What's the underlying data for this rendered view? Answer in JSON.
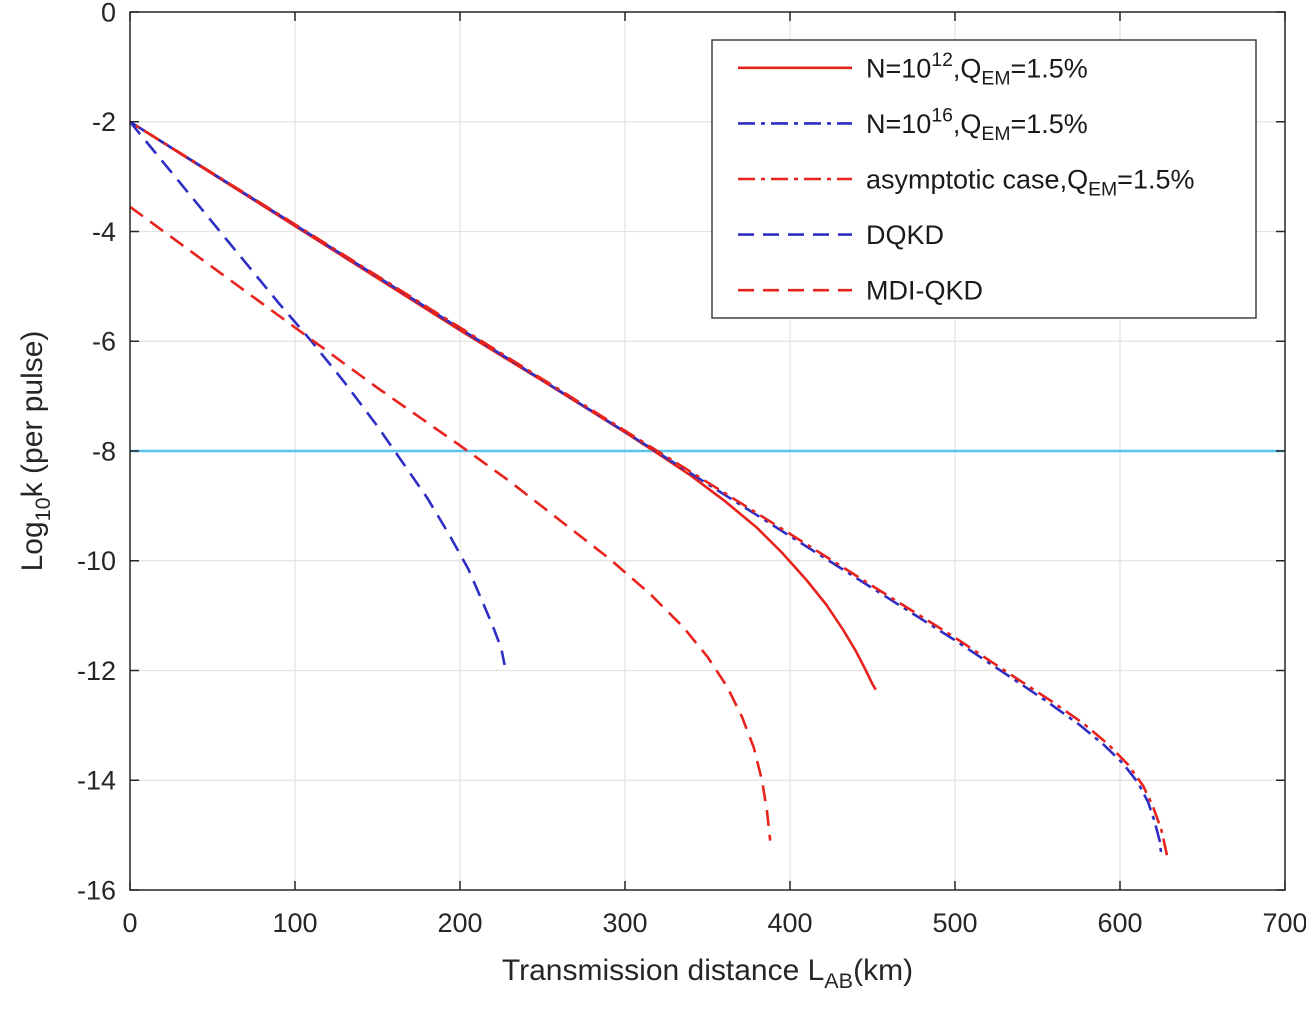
{
  "figure": {
    "background": "#ffffff"
  },
  "chart_data": {
    "type": "line",
    "title": "",
    "xlabel_segments": [
      {
        "t": "Transmission distance L"
      },
      {
        "t": "AB",
        "sub": true
      },
      {
        "t": "(km)"
      }
    ],
    "ylabel_segments": [
      {
        "t": "Log"
      },
      {
        "t": "10",
        "sub": true
      },
      {
        "t": "k (per pulse)"
      }
    ],
    "xlim": [
      0,
      700
    ],
    "ylim": [
      -16,
      0
    ],
    "xticks": [
      0,
      100,
      200,
      300,
      400,
      500,
      600,
      700
    ],
    "yticks": [
      0,
      -2,
      -4,
      -6,
      -8,
      -10,
      -12,
      -14,
      -16
    ],
    "grid": true,
    "grid_color": "#e3e3e3",
    "axis_color": "#262626",
    "tick_label_color": "#262626",
    "legend": {
      "position": "top-right",
      "border_color": "#333333",
      "background": "#ffffff"
    },
    "reference_line": {
      "key": "threshold",
      "y": -8,
      "color": "#58c4ee",
      "width": 2.6
    },
    "series": [
      {
        "key": "n1e12",
        "label_segments": [
          {
            "t": "N=10"
          },
          {
            "t": "12",
            "sup": true
          },
          {
            "t": ",Q"
          },
          {
            "t": "EM",
            "sub": true
          },
          {
            "t": "=1.5%"
          }
        ],
        "color": "#e8221c",
        "style": "solid",
        "width": 2.6,
        "points": [
          [
            0,
            -2.0
          ],
          [
            50,
            -2.95
          ],
          [
            100,
            -3.9
          ],
          [
            150,
            -4.85
          ],
          [
            200,
            -5.8
          ],
          [
            250,
            -6.72
          ],
          [
            300,
            -7.66
          ],
          [
            320,
            -8.05
          ],
          [
            340,
            -8.45
          ],
          [
            360,
            -8.9
          ],
          [
            380,
            -9.4
          ],
          [
            395,
            -9.85
          ],
          [
            410,
            -10.35
          ],
          [
            422,
            -10.8
          ],
          [
            432,
            -11.25
          ],
          [
            440,
            -11.65
          ],
          [
            446,
            -12.0
          ],
          [
            450,
            -12.25
          ],
          [
            452,
            -12.35
          ]
        ]
      },
      {
        "key": "n1e16",
        "label_segments": [
          {
            "t": "N=10"
          },
          {
            "t": "16",
            "sup": true
          },
          {
            "t": ",Q"
          },
          {
            "t": "EM",
            "sub": true
          },
          {
            "t": "=1.5%"
          }
        ],
        "color": "#2e2ec4",
        "style": "dashdot",
        "width": 2.6,
        "dash_offset": 0,
        "points": [
          [
            0,
            -2.0
          ],
          [
            100,
            -3.88
          ],
          [
            200,
            -5.77
          ],
          [
            300,
            -7.65
          ],
          [
            350,
            -8.6
          ],
          [
            400,
            -9.55
          ],
          [
            450,
            -10.5
          ],
          [
            500,
            -11.45
          ],
          [
            530,
            -12.05
          ],
          [
            555,
            -12.55
          ],
          [
            575,
            -12.98
          ],
          [
            590,
            -13.35
          ],
          [
            602,
            -13.7
          ],
          [
            611,
            -14.05
          ],
          [
            617,
            -14.4
          ],
          [
            621,
            -14.75
          ],
          [
            624,
            -15.1
          ],
          [
            625,
            -15.35
          ]
        ]
      },
      {
        "key": "asymptotic",
        "label_segments": [
          {
            "t": "asymptotic case,Q"
          },
          {
            "t": "EM",
            "sub": true
          },
          {
            "t": "=1.5%"
          }
        ],
        "color": "#e8221c",
        "style": "dashdot",
        "width": 2.6,
        "dash_offset": 16,
        "points": [
          [
            0,
            -2.0
          ],
          [
            100,
            -3.87
          ],
          [
            200,
            -5.75
          ],
          [
            300,
            -7.63
          ],
          [
            350,
            -8.57
          ],
          [
            400,
            -9.51
          ],
          [
            450,
            -10.46
          ],
          [
            500,
            -11.4
          ],
          [
            530,
            -12.0
          ],
          [
            558,
            -12.55
          ],
          [
            578,
            -12.97
          ],
          [
            593,
            -13.35
          ],
          [
            605,
            -13.72
          ],
          [
            614,
            -14.1
          ],
          [
            620,
            -14.48
          ],
          [
            625,
            -14.9
          ],
          [
            628,
            -15.3
          ],
          [
            629,
            -15.45
          ]
        ]
      },
      {
        "key": "dqkd",
        "label_segments": [
          {
            "t": "DQKD"
          }
        ],
        "color": "#2e2ec4",
        "style": "dashed",
        "width": 2.6,
        "points": [
          [
            0,
            -2.0
          ],
          [
            30,
            -3.1
          ],
          [
            60,
            -4.2
          ],
          [
            90,
            -5.3
          ],
          [
            110,
            -6.0
          ],
          [
            130,
            -6.75
          ],
          [
            150,
            -7.55
          ],
          [
            165,
            -8.2
          ],
          [
            180,
            -8.85
          ],
          [
            193,
            -9.5
          ],
          [
            205,
            -10.15
          ],
          [
            213,
            -10.7
          ],
          [
            220,
            -11.2
          ],
          [
            225,
            -11.6
          ],
          [
            227,
            -11.9
          ]
        ]
      },
      {
        "key": "mdi-qkd",
        "label_segments": [
          {
            "t": "MDI-QKD"
          }
        ],
        "color": "#e8221c",
        "style": "dashed",
        "width": 2.6,
        "points": [
          [
            0,
            -3.55
          ],
          [
            50,
            -4.65
          ],
          [
            100,
            -5.75
          ],
          [
            150,
            -6.85
          ],
          [
            200,
            -7.9
          ],
          [
            230,
            -8.55
          ],
          [
            260,
            -9.25
          ],
          [
            290,
            -9.95
          ],
          [
            315,
            -10.6
          ],
          [
            335,
            -11.2
          ],
          [
            350,
            -11.75
          ],
          [
            362,
            -12.3
          ],
          [
            371,
            -12.85
          ],
          [
            378,
            -13.4
          ],
          [
            383,
            -14.0
          ],
          [
            386,
            -14.55
          ],
          [
            388,
            -15.1
          ]
        ]
      }
    ]
  }
}
